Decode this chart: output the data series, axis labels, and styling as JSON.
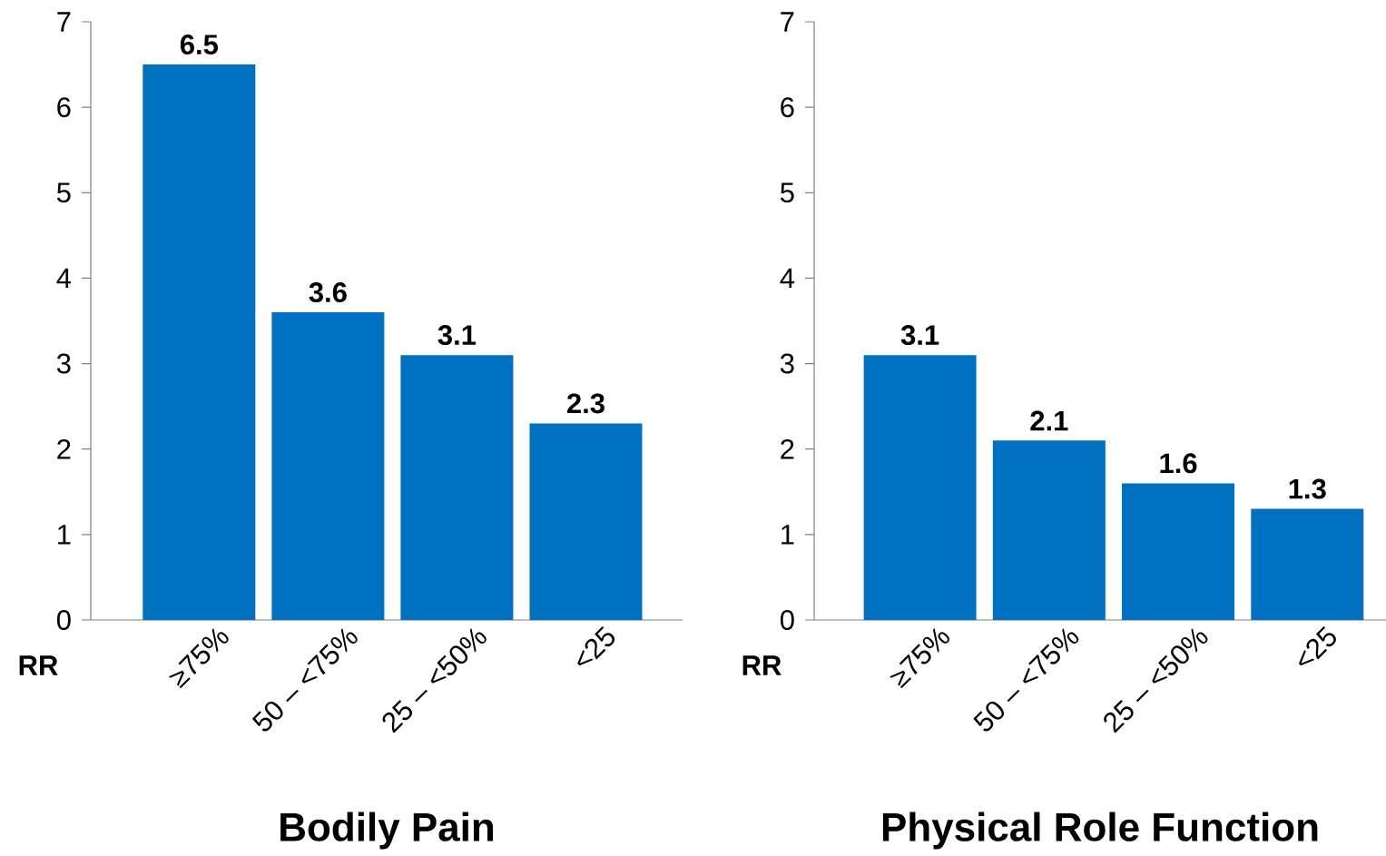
{
  "chart_data": [
    {
      "type": "bar",
      "xlabel": "Bodily Pain",
      "ylabel": "RR",
      "categories": [
        "≥75%",
        "50 – <75%",
        "25 – <50%",
        "<25"
      ],
      "values": [
        6.5,
        3.6,
        3.1,
        2.3
      ],
      "color": "#0070c0",
      "ylim": [
        0,
        7
      ],
      "yticks": [
        0,
        1,
        2,
        3,
        4,
        5,
        6,
        7
      ],
      "data_labels": true
    },
    {
      "type": "bar",
      "xlabel": "Physical Role Function",
      "ylabel": "RR",
      "categories": [
        "≥75%",
        "50 – <75%",
        "25 – <50%",
        "<25"
      ],
      "values": [
        3.1,
        2.1,
        1.6,
        1.3
      ],
      "color": "#0070c0",
      "ylim": [
        0,
        7
      ],
      "yticks": [
        0,
        1,
        2,
        3,
        4,
        5,
        6,
        7
      ],
      "data_labels": true
    }
  ]
}
